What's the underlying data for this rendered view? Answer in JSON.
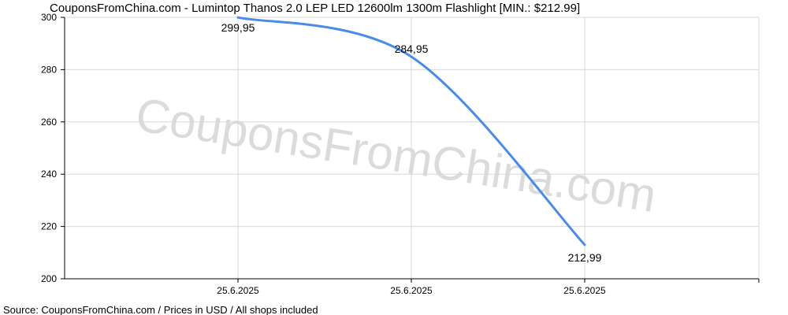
{
  "chart_data": {
    "type": "line",
    "title": "CouponsFromChina.com - Lumintop Thanos 2.0 LEP LED 12600lm 1300m Flashlight [MIN.: $212.99]",
    "x_tick_labels": [
      "25.6.2025",
      "25.6.2025",
      "25.6.2025"
    ],
    "y_ticks": [
      200,
      220,
      240,
      260,
      280,
      300
    ],
    "ylim": [
      200,
      300
    ],
    "xlabel": "",
    "ylabel": "",
    "grid": true,
    "series": [
      {
        "color": "#4a8be8",
        "values": [
          299.95,
          284.95,
          212.99
        ],
        "labels": [
          "299,95",
          "284,95",
          "212,99"
        ]
      }
    ]
  },
  "watermark": "CouponsFromChina.com",
  "footer": "Source: CouponsFromChina.com / Prices in USD / All shops included",
  "colors": {
    "line": "#4a8be8",
    "grid": "#d8d8d8",
    "axis": "#000000"
  }
}
